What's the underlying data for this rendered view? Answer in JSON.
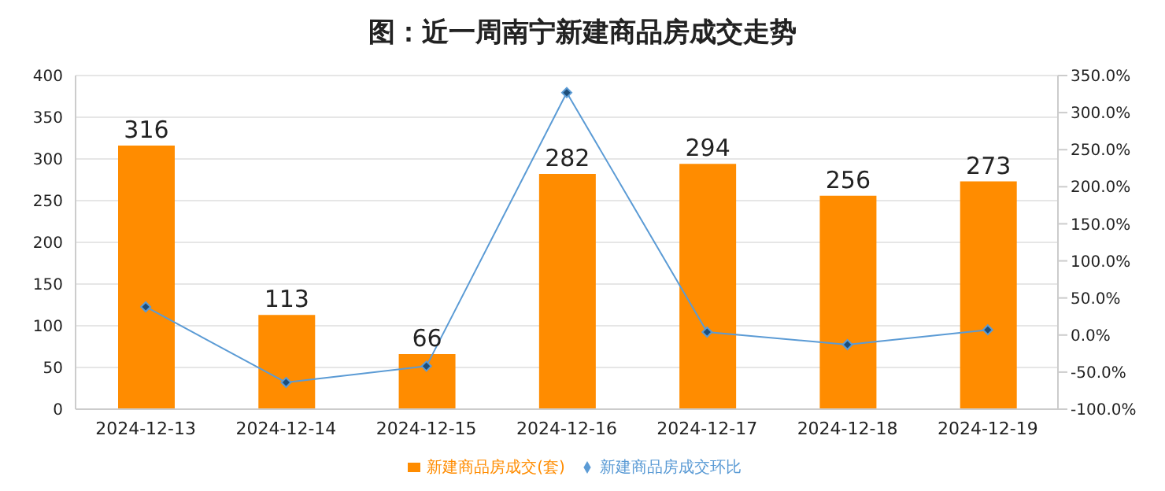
{
  "chart_data": {
    "type": "bar",
    "title": "图：近一周南宁新建商品房成交走势",
    "categories": [
      "2024-12-13",
      "2024-12-14",
      "2024-12-15",
      "2024-12-16",
      "2024-12-17",
      "2024-12-18",
      "2024-12-19"
    ],
    "series": [
      {
        "name": "新建商品房成交(套)",
        "color": "#ff8c00",
        "values": [
          316,
          113,
          66,
          282,
          294,
          256,
          273
        ],
        "value_labels": [
          "316",
          "113",
          "66",
          "282",
          "294",
          "256",
          "273"
        ]
      },
      {
        "name": "新建商品房成交环比",
        "type": "line",
        "axis": "y2",
        "color": "#5b9bd5",
        "values": [
          38,
          -64,
          -42,
          327,
          4,
          -13,
          7
        ]
      }
    ],
    "ylim": [
      0,
      400
    ],
    "yticks": [
      0,
      50,
      100,
      150,
      200,
      250,
      300,
      350,
      400
    ],
    "y2lim": [
      -100,
      350
    ],
    "y2ticks": [
      {
        "value": -100,
        "label": "-100.0%"
      },
      {
        "value": -50,
        "label": "-50.0%"
      },
      {
        "value": 0,
        "label": "0.0%"
      },
      {
        "value": 50,
        "label": "50.0%"
      },
      {
        "value": 100,
        "label": "100.0%"
      },
      {
        "value": 150,
        "label": "150.0%"
      },
      {
        "value": 200,
        "label": "200.0%"
      },
      {
        "value": 250,
        "label": "250.0%"
      },
      {
        "value": 300,
        "label": "300.0%"
      },
      {
        "value": 350,
        "label": "350.0%"
      }
    ],
    "grid": "y",
    "legend": "bottom",
    "marker": "diamond"
  }
}
